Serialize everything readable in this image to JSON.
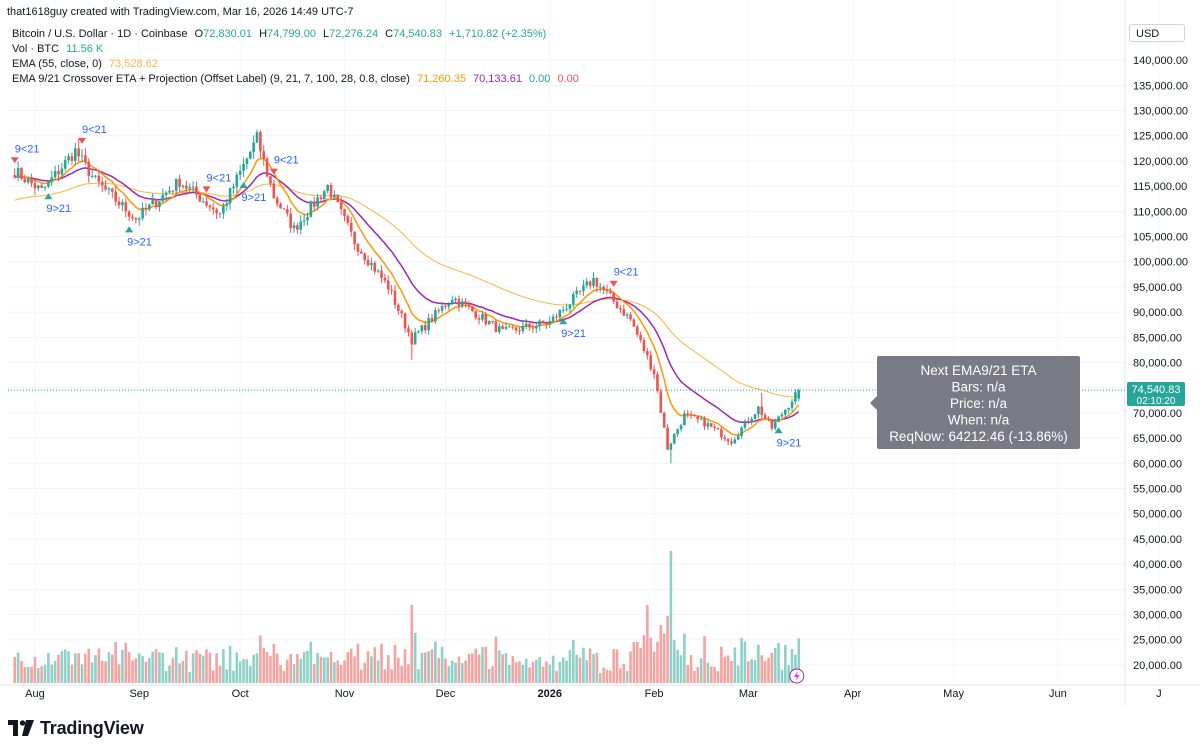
{
  "header": {
    "caption": "that1618guy created with TradingView.com, Mar 16, 2026 14:49 UTC-7"
  },
  "legend": {
    "symbol": "Bitcoin / U.S. Dollar · 1D · Coinbase",
    "ohlc": {
      "o_label": "O",
      "o_value": "72,830.01",
      "h_label": "H",
      "h_value": "74,799.00",
      "l_label": "L",
      "l_value": "72,276.24",
      "c_label": "C",
      "c_value": "74,540.83",
      "change": "+1,710.82 (+2.35%)"
    },
    "vol_label": "Vol · BTC",
    "vol_value": "11.56 K",
    "ema55_label": "EMA (55, close, 0)",
    "ema55_value": "73,528.62",
    "cross_label": "EMA 9/21 Crossover ETA + Projection (Offset Label) (9, 21, 7, 100, 28, 0.8, close)",
    "cross_values": [
      "71,260.35",
      "70,133.61",
      "0.00",
      "0.00"
    ]
  },
  "price_axis": {
    "currency": "USD",
    "last_price": "74,540.83",
    "countdown": "02:10:20"
  },
  "info_box": {
    "lines": [
      "Next EMA9/21 ETA",
      "Bars: n/a",
      "Price: n/a",
      "When: n/a",
      "ReqNow: 64212.46 (-13.86%)"
    ]
  },
  "branding": {
    "name": "TradingView"
  },
  "colors": {
    "up": "#26a69a",
    "down": "#ef5350",
    "up_vol": "#8fd0c8",
    "down_vol": "#f4a3a1",
    "ema9": "#ff9800",
    "ema21": "#9c27b0",
    "ema55": "#f5b642",
    "label_blue": "#2962ff",
    "info_box_bg": "#787b86"
  },
  "chart_data": {
    "type": "candlestick",
    "symbol": "BTCUSD",
    "timeframe": "1D",
    "x_axis_ticks": [
      "Aug",
      "Sep",
      "Oct",
      "Nov",
      "Dec",
      "2026",
      "Feb",
      "Mar",
      "Apr",
      "May",
      "Jun",
      "J"
    ],
    "y_axis_ticks": [
      "20,000.00",
      "25,000.00",
      "30,000.00",
      "35,000.00",
      "40,000.00",
      "45,000.00",
      "50,000.00",
      "55,000.00",
      "60,000.00",
      "65,000.00",
      "70,000.00",
      "75,000.00",
      "80,000.00",
      "85,000.00",
      "90,000.00",
      "95,000.00",
      "100,000.00",
      "105,000.00",
      "110,000.00",
      "115,000.00",
      "120,000.00",
      "125,000.00",
      "130,000.00",
      "135,000.00",
      "140,000.00"
    ],
    "ylim": [
      18000,
      143000
    ],
    "price_anchors": [
      {
        "date": "2025-07-26",
        "close": 118000
      },
      {
        "date": "2025-08-03",
        "close": 114000
      },
      {
        "date": "2025-08-13",
        "close": 122000
      },
      {
        "date": "2025-08-19",
        "close": 116000
      },
      {
        "date": "2025-08-31",
        "close": 108500
      },
      {
        "date": "2025-09-13",
        "close": 116000
      },
      {
        "date": "2025-09-25",
        "close": 109500
      },
      {
        "date": "2025-10-06",
        "close": 124500
      },
      {
        "date": "2025-10-11",
        "close": 113000
      },
      {
        "date": "2025-10-17",
        "close": 106500
      },
      {
        "date": "2025-10-27",
        "close": 115000
      },
      {
        "date": "2025-11-04",
        "close": 104000
      },
      {
        "date": "2025-11-14",
        "close": 95000
      },
      {
        "date": "2025-11-21",
        "close": 84500
      },
      {
        "date": "2025-12-03",
        "close": 93000
      },
      {
        "date": "2025-12-18",
        "close": 86000
      },
      {
        "date": "2026-01-01",
        "close": 88000
      },
      {
        "date": "2026-01-14",
        "close": 96500
      },
      {
        "date": "2026-01-25",
        "close": 88500
      },
      {
        "date": "2026-02-01",
        "close": 78000
      },
      {
        "date": "2026-02-05",
        "close": 63000
      },
      {
        "date": "2026-02-10",
        "close": 69500
      },
      {
        "date": "2026-02-16",
        "close": 68000
      },
      {
        "date": "2026-02-24",
        "close": 64500
      },
      {
        "date": "2026-03-04",
        "close": 71000
      },
      {
        "date": "2026-03-08",
        "close": 67000
      },
      {
        "date": "2026-03-16",
        "close": 74540.83
      }
    ],
    "crossover_labels": [
      {
        "date": "2025-07-26",
        "text": "9<21"
      },
      {
        "date": "2025-08-05",
        "text": "9>21"
      },
      {
        "date": "2025-08-15",
        "text": "9<21"
      },
      {
        "date": "2025-08-29",
        "text": "9>21"
      },
      {
        "date": "2025-09-21",
        "text": "9<21"
      },
      {
        "date": "2025-10-02",
        "text": "9>21"
      },
      {
        "date": "2025-10-11",
        "text": "9<21"
      },
      {
        "date": "2026-01-05",
        "text": "9>21"
      },
      {
        "date": "2026-01-20",
        "text": "9<21"
      },
      {
        "date": "2026-03-10",
        "text": "9>21"
      }
    ],
    "series": [
      {
        "name": "EMA 55",
        "last": 73528.62
      },
      {
        "name": "EMA 9",
        "last": 71260.35
      },
      {
        "name": "EMA 21",
        "last": 70133.61
      }
    ]
  }
}
